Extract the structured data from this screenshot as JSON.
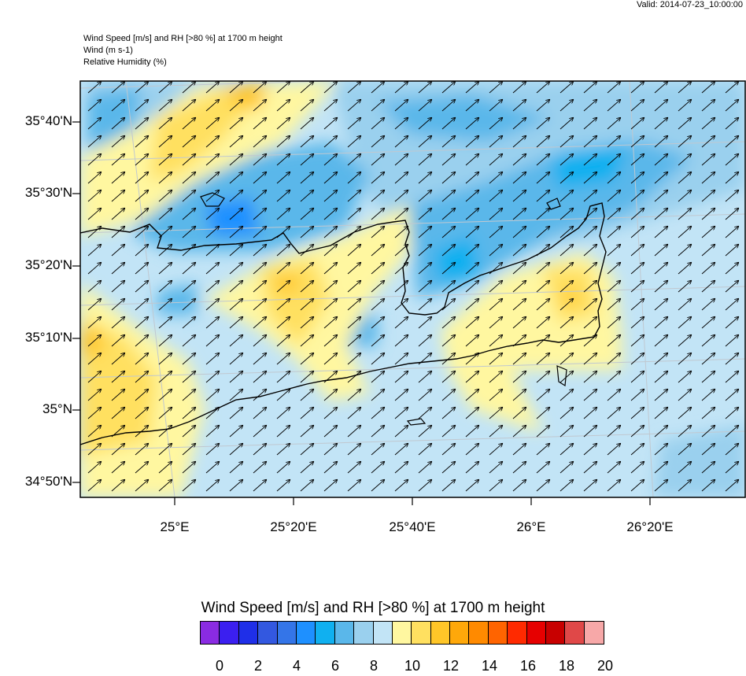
{
  "header": {
    "valid": "Valid: 2014-07-23_10:00:00",
    "title_line1": "Wind Speed [m/s] and RH [>80 %] at 1700 m height",
    "title_line2": "Wind   (m s-1)",
    "title_line3": "Relative Humidity   (%)"
  },
  "map": {
    "region": "Crete",
    "lat_labels": [
      "35°40'N",
      "35°30'N",
      "35°20'N",
      "35°10'N",
      "35°N",
      "34°50'N"
    ],
    "lon_labels": [
      "25°E",
      "25°20'E",
      "25°40'E",
      "26°E",
      "26°20'E"
    ],
    "wind_direction": "southwest-to-northeast",
    "colors": {
      "coastline": "#000000",
      "gridline": "#c0c8d0"
    }
  },
  "legend": {
    "title": "Wind Speed [m/s] and RH [>80 %] at 1700 m height",
    "colors": [
      "#8a2be2",
      "#3b1ff0",
      "#1f2fe8",
      "#3358e0",
      "#3475e8",
      "#1e90ff",
      "#10b0f0",
      "#5ab7ea",
      "#9ad0ee",
      "#c2e4f6",
      "#fff7a0",
      "#ffe060",
      "#ffc628",
      "#ffa80a",
      "#ff8a00",
      "#ff6400",
      "#ff2a00",
      "#e60000",
      "#c80000",
      "#e04848",
      "#f7a8a8"
    ],
    "ticks": [
      "0",
      "2",
      "4",
      "6",
      "8",
      "10",
      "12",
      "14",
      "16",
      "18",
      "20"
    ]
  }
}
